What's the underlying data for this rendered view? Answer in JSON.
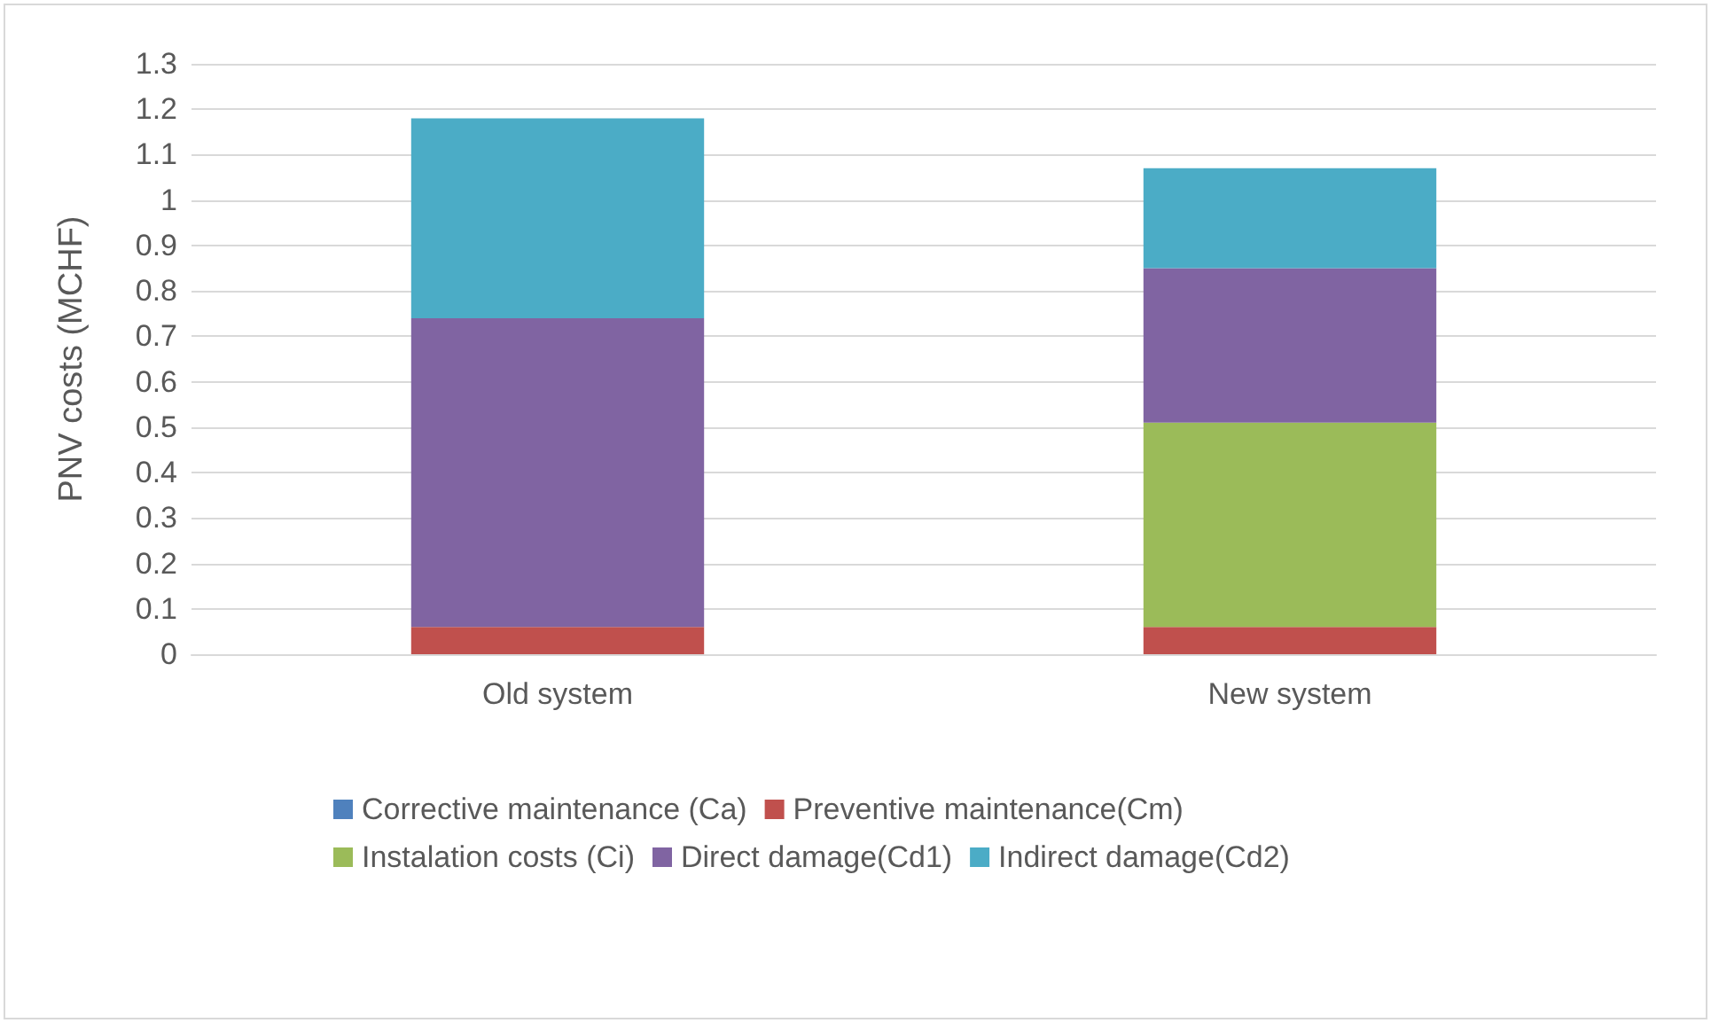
{
  "chart_data": {
    "type": "bar",
    "stacked": true,
    "ylabel": "PNV costs (MCHF)",
    "categories": [
      "Old system",
      "New system"
    ],
    "series": [
      {
        "name": "Corrective maintenance (Ca)",
        "color": "#4f81bd",
        "values": [
          0,
          0
        ]
      },
      {
        "name": "Preventive maintenance(Cm)",
        "color": "#c0504d",
        "values": [
          0.06,
          0.06
        ]
      },
      {
        "name": "Instalation costs (Ci)",
        "color": "#9bbb59",
        "values": [
          0,
          0.45
        ]
      },
      {
        "name": "Direct damage(Cd1)",
        "color": "#8064a2",
        "values": [
          0.68,
          0.34
        ]
      },
      {
        "name": "Indirect damage(Cd2)",
        "color": "#4bacc6",
        "values": [
          0.44,
          0.22
        ]
      }
    ],
    "ylim": [
      0,
      1.3
    ],
    "yticks": [
      0,
      0.1,
      0.2,
      0.3,
      0.4,
      0.5,
      0.6,
      0.7,
      0.8,
      0.9,
      1,
      1.1,
      1.2,
      1.3
    ],
    "grid": "y",
    "legend": "bottom"
  }
}
